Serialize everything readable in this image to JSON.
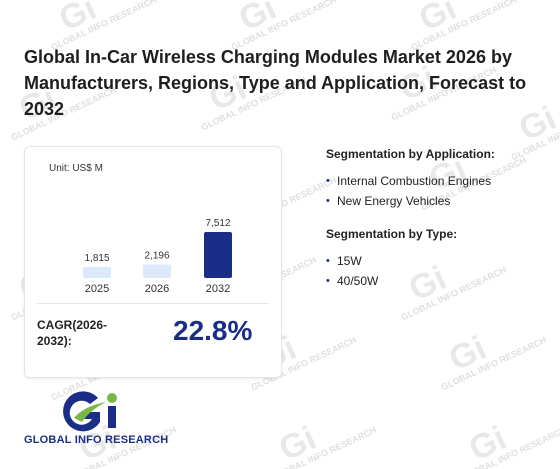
{
  "title": "Global In-Car Wireless Charging Modules Market 2026 by Manufacturers, Regions, Type and Application, Forecast to 2032",
  "watermark": "GLOBAL INFO RESEARCH",
  "chart": {
    "unit_label": "Unit: US$ M",
    "cagr_label": "CAGR(2026-2032):",
    "cagr_value": "22.8%"
  },
  "chart_data": {
    "type": "bar",
    "categories": [
      "2025",
      "2026",
      "2032"
    ],
    "values": [
      1815,
      2196,
      7512
    ],
    "value_labels": [
      "1,815",
      "2,196",
      "7,512"
    ],
    "colors": [
      "#dbe9fb",
      "#dbe9fb",
      "#1a2e88"
    ],
    "ylim": [
      0,
      7512
    ]
  },
  "segmentation": {
    "application": {
      "heading": "Segmentation by Application:",
      "items": [
        "Internal Combustion Engines",
        "New Energy Vehicles"
      ]
    },
    "type": {
      "heading": "Segmentation by Type:",
      "items": [
        "15W",
        "40/50W"
      ]
    }
  },
  "logo": {
    "text": "GLOBAL INFO RESEARCH",
    "colors": {
      "blue": "#1a2e88",
      "green": "#7ab648"
    }
  }
}
